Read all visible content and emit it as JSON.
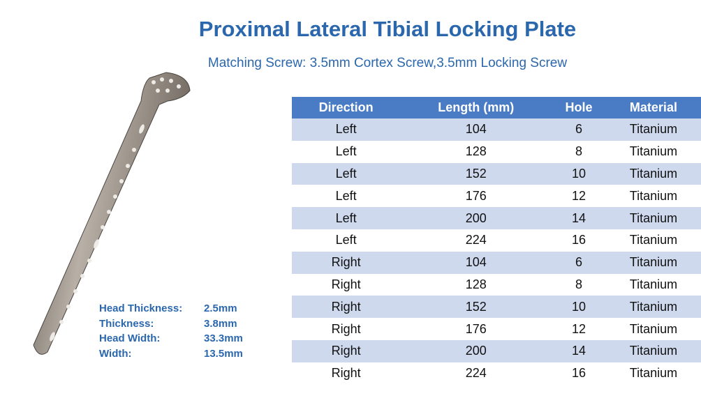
{
  "header": {
    "title": "Proximal Lateral Tibial Locking Plate",
    "subtitle": "Matching Screw: 3.5mm Cortex Screw,3.5mm Locking Screw"
  },
  "specs": [
    {
      "label": "Head Thickness:",
      "value": "2.5mm"
    },
    {
      "label": "Thickness:",
      "value": "3.8mm"
    },
    {
      "label": "Head Width:",
      "value": "33.3mm"
    },
    {
      "label": "Width:",
      "value": "13.5mm"
    }
  ],
  "table": {
    "columns": [
      "Direction",
      "Length (mm)",
      "Hole",
      "Material"
    ],
    "rows": [
      [
        "Left",
        "104",
        "6",
        "Titanium"
      ],
      [
        "Left",
        "128",
        "8",
        "Titanium"
      ],
      [
        "Left",
        "152",
        "10",
        "Titanium"
      ],
      [
        "Left",
        "176",
        "12",
        "Titanium"
      ],
      [
        "Left",
        "200",
        "14",
        "Titanium"
      ],
      [
        "Left",
        "224",
        "16",
        "Titanium"
      ],
      [
        "Right",
        "104",
        "6",
        "Titanium"
      ],
      [
        "Right",
        "128",
        "8",
        "Titanium"
      ],
      [
        "Right",
        "152",
        "10",
        "Titanium"
      ],
      [
        "Right",
        "176",
        "12",
        "Titanium"
      ],
      [
        "Right",
        "200",
        "14",
        "Titanium"
      ],
      [
        "Right",
        "224",
        "16",
        "Titanium"
      ]
    ]
  }
}
